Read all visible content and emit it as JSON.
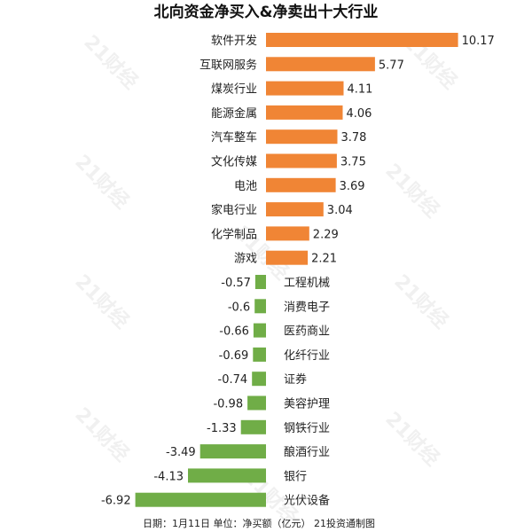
{
  "chart_data": {
    "type": "bar",
    "orientation": "horizontal",
    "title": "北向资金净买入&净卖出十大行业",
    "categories": [
      "软件开发",
      "互联网服务",
      "煤炭行业",
      "能源金属",
      "汽车整车",
      "文化传媒",
      "电池",
      "家电行业",
      "化学制品",
      "游戏",
      "工程机械",
      "消费电子",
      "医药商业",
      "化纤行业",
      "证券",
      "美容护理",
      "钢铁行业",
      "酿酒行业",
      "银行",
      "光伏设备"
    ],
    "values": [
      10.17,
      5.77,
      4.11,
      4.06,
      3.78,
      3.75,
      3.69,
      3.04,
      2.29,
      2.21,
      -0.57,
      -0.6,
      -0.66,
      -0.69,
      -0.74,
      -0.98,
      -1.33,
      -3.49,
      -4.13,
      -6.92
    ],
    "value_labels": [
      "10.17",
      "5.77",
      "4.11",
      "4.06",
      "3.78",
      "3.75",
      "3.69",
      "3.04",
      "2.29",
      "2.21",
      "-0.57",
      "-0.6",
      "-0.66",
      "-0.69",
      "-0.74",
      "-0.98",
      "-1.33",
      "-3.49",
      "-4.13",
      "-6.92"
    ],
    "colors": {
      "positive": "#F08535",
      "negative": "#70AD47"
    },
    "grid": false,
    "legend": "none"
  },
  "footer": "日期：1月11日 单位：净买额（亿元） 21投资通制图",
  "watermark": "21财经"
}
